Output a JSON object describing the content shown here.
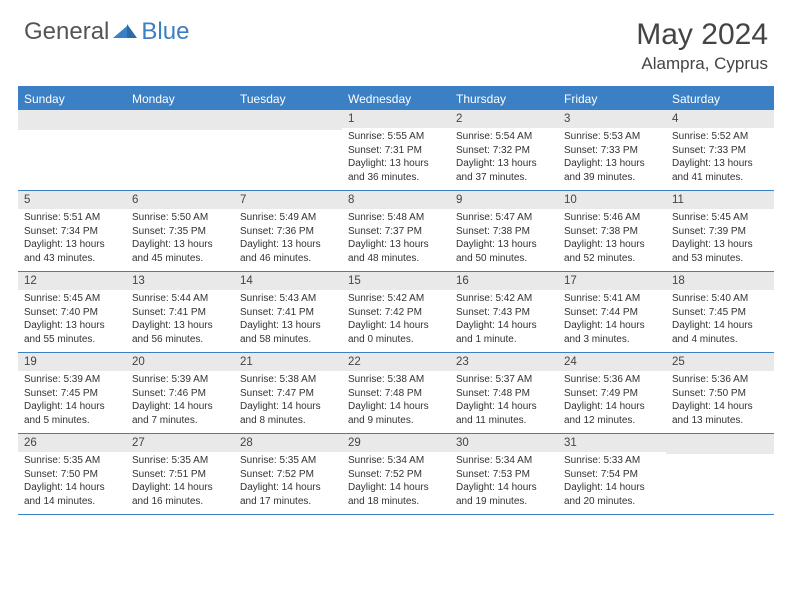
{
  "brand": {
    "part1": "General",
    "part2": "Blue"
  },
  "title": "May 2024",
  "location": "Alampra, Cyprus",
  "colors": {
    "accent": "#3b7fc4",
    "dayBg": "#e9e9e9",
    "text": "#333333",
    "border": "#3b7fc4"
  },
  "typography": {
    "title_fontsize": 30,
    "location_fontsize": 17,
    "dayhead_fontsize": 12,
    "daynum_fontsize": 11.5,
    "info_fontsize": 10
  },
  "dayNames": [
    "Sunday",
    "Monday",
    "Tuesday",
    "Wednesday",
    "Thursday",
    "Friday",
    "Saturday"
  ],
  "weeks": [
    [
      {
        "n": "",
        "lines": []
      },
      {
        "n": "",
        "lines": []
      },
      {
        "n": "",
        "lines": []
      },
      {
        "n": "1",
        "lines": [
          "Sunrise: 5:55 AM",
          "Sunset: 7:31 PM",
          "Daylight: 13 hours",
          "and 36 minutes."
        ]
      },
      {
        "n": "2",
        "lines": [
          "Sunrise: 5:54 AM",
          "Sunset: 7:32 PM",
          "Daylight: 13 hours",
          "and 37 minutes."
        ]
      },
      {
        "n": "3",
        "lines": [
          "Sunrise: 5:53 AM",
          "Sunset: 7:33 PM",
          "Daylight: 13 hours",
          "and 39 minutes."
        ]
      },
      {
        "n": "4",
        "lines": [
          "Sunrise: 5:52 AM",
          "Sunset: 7:33 PM",
          "Daylight: 13 hours",
          "and 41 minutes."
        ]
      }
    ],
    [
      {
        "n": "5",
        "lines": [
          "Sunrise: 5:51 AM",
          "Sunset: 7:34 PM",
          "Daylight: 13 hours",
          "and 43 minutes."
        ]
      },
      {
        "n": "6",
        "lines": [
          "Sunrise: 5:50 AM",
          "Sunset: 7:35 PM",
          "Daylight: 13 hours",
          "and 45 minutes."
        ]
      },
      {
        "n": "7",
        "lines": [
          "Sunrise: 5:49 AM",
          "Sunset: 7:36 PM",
          "Daylight: 13 hours",
          "and 46 minutes."
        ]
      },
      {
        "n": "8",
        "lines": [
          "Sunrise: 5:48 AM",
          "Sunset: 7:37 PM",
          "Daylight: 13 hours",
          "and 48 minutes."
        ]
      },
      {
        "n": "9",
        "lines": [
          "Sunrise: 5:47 AM",
          "Sunset: 7:38 PM",
          "Daylight: 13 hours",
          "and 50 minutes."
        ]
      },
      {
        "n": "10",
        "lines": [
          "Sunrise: 5:46 AM",
          "Sunset: 7:38 PM",
          "Daylight: 13 hours",
          "and 52 minutes."
        ]
      },
      {
        "n": "11",
        "lines": [
          "Sunrise: 5:45 AM",
          "Sunset: 7:39 PM",
          "Daylight: 13 hours",
          "and 53 minutes."
        ]
      }
    ],
    [
      {
        "n": "12",
        "lines": [
          "Sunrise: 5:45 AM",
          "Sunset: 7:40 PM",
          "Daylight: 13 hours",
          "and 55 minutes."
        ]
      },
      {
        "n": "13",
        "lines": [
          "Sunrise: 5:44 AM",
          "Sunset: 7:41 PM",
          "Daylight: 13 hours",
          "and 56 minutes."
        ]
      },
      {
        "n": "14",
        "lines": [
          "Sunrise: 5:43 AM",
          "Sunset: 7:41 PM",
          "Daylight: 13 hours",
          "and 58 minutes."
        ]
      },
      {
        "n": "15",
        "lines": [
          "Sunrise: 5:42 AM",
          "Sunset: 7:42 PM",
          "Daylight: 14 hours",
          "and 0 minutes."
        ]
      },
      {
        "n": "16",
        "lines": [
          "Sunrise: 5:42 AM",
          "Sunset: 7:43 PM",
          "Daylight: 14 hours",
          "and 1 minute."
        ]
      },
      {
        "n": "17",
        "lines": [
          "Sunrise: 5:41 AM",
          "Sunset: 7:44 PM",
          "Daylight: 14 hours",
          "and 3 minutes."
        ]
      },
      {
        "n": "18",
        "lines": [
          "Sunrise: 5:40 AM",
          "Sunset: 7:45 PM",
          "Daylight: 14 hours",
          "and 4 minutes."
        ]
      }
    ],
    [
      {
        "n": "19",
        "lines": [
          "Sunrise: 5:39 AM",
          "Sunset: 7:45 PM",
          "Daylight: 14 hours",
          "and 5 minutes."
        ]
      },
      {
        "n": "20",
        "lines": [
          "Sunrise: 5:39 AM",
          "Sunset: 7:46 PM",
          "Daylight: 14 hours",
          "and 7 minutes."
        ]
      },
      {
        "n": "21",
        "lines": [
          "Sunrise: 5:38 AM",
          "Sunset: 7:47 PM",
          "Daylight: 14 hours",
          "and 8 minutes."
        ]
      },
      {
        "n": "22",
        "lines": [
          "Sunrise: 5:38 AM",
          "Sunset: 7:48 PM",
          "Daylight: 14 hours",
          "and 9 minutes."
        ]
      },
      {
        "n": "23",
        "lines": [
          "Sunrise: 5:37 AM",
          "Sunset: 7:48 PM",
          "Daylight: 14 hours",
          "and 11 minutes."
        ]
      },
      {
        "n": "24",
        "lines": [
          "Sunrise: 5:36 AM",
          "Sunset: 7:49 PM",
          "Daylight: 14 hours",
          "and 12 minutes."
        ]
      },
      {
        "n": "25",
        "lines": [
          "Sunrise: 5:36 AM",
          "Sunset: 7:50 PM",
          "Daylight: 14 hours",
          "and 13 minutes."
        ]
      }
    ],
    [
      {
        "n": "26",
        "lines": [
          "Sunrise: 5:35 AM",
          "Sunset: 7:50 PM",
          "Daylight: 14 hours",
          "and 14 minutes."
        ]
      },
      {
        "n": "27",
        "lines": [
          "Sunrise: 5:35 AM",
          "Sunset: 7:51 PM",
          "Daylight: 14 hours",
          "and 16 minutes."
        ]
      },
      {
        "n": "28",
        "lines": [
          "Sunrise: 5:35 AM",
          "Sunset: 7:52 PM",
          "Daylight: 14 hours",
          "and 17 minutes."
        ]
      },
      {
        "n": "29",
        "lines": [
          "Sunrise: 5:34 AM",
          "Sunset: 7:52 PM",
          "Daylight: 14 hours",
          "and 18 minutes."
        ]
      },
      {
        "n": "30",
        "lines": [
          "Sunrise: 5:34 AM",
          "Sunset: 7:53 PM",
          "Daylight: 14 hours",
          "and 19 minutes."
        ]
      },
      {
        "n": "31",
        "lines": [
          "Sunrise: 5:33 AM",
          "Sunset: 7:54 PM",
          "Daylight: 14 hours",
          "and 20 minutes."
        ]
      },
      {
        "n": "",
        "lines": []
      }
    ]
  ]
}
